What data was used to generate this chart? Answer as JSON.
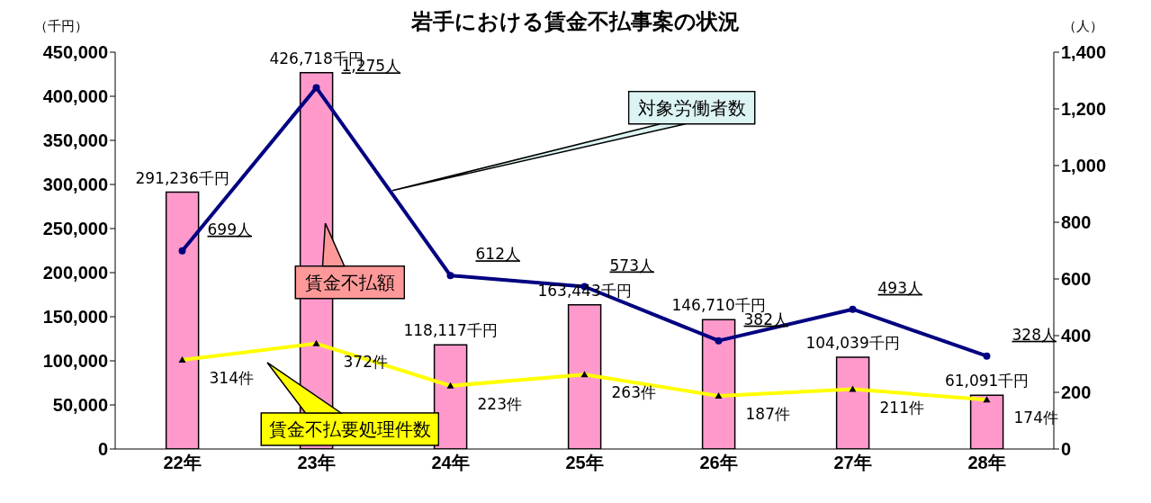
{
  "chart_data": {
    "type": "bar",
    "title": "岩手における賃金不払事案の状況",
    "ylabel": "（千円）",
    "y2label": "（人）",
    "categories": [
      "22年",
      "23年",
      "24年",
      "25年",
      "26年",
      "27年",
      "28年"
    ],
    "series": [
      {
        "name": "賃金不払額",
        "color": "#ff99cc",
        "values": [
          291236,
          426718,
          118117,
          163443,
          146710,
          104039,
          61091
        ],
        "value_labels": [
          "291,236千円",
          "426,718千円",
          "118,117千円",
          "163,443千円",
          "146,710千円",
          "104,039千円",
          "61,091千円"
        ]
      },
      {
        "name": "対象労働者数",
        "type": "line",
        "axis": "y2",
        "color": "#000080",
        "marker": "circle",
        "values": [
          699,
          1275,
          612,
          573,
          382,
          493,
          328
        ],
        "value_labels": [
          "699人",
          "1,275人",
          "612人",
          "573人",
          "382人",
          "493人",
          "328人"
        ]
      },
      {
        "name": "賃金不払要処理件数",
        "type": "line",
        "axis": "y2",
        "color": "#ffff00",
        "marker": "triangle",
        "values": [
          314,
          372,
          223,
          263,
          187,
          211,
          174
        ],
        "value_labels": [
          "314件",
          "372件",
          "223件",
          "263件",
          "187件",
          "211件",
          "174件"
        ]
      }
    ],
    "ylim": [
      0,
      450000
    ],
    "yticks": [
      0,
      {
        "value": 50000,
        "label": "50,000"
      },
      {
        "value": 100000,
        "label": "100,000"
      },
      {
        "value": 150000,
        "label": "150,000"
      },
      {
        "value": 200000,
        "label": "200,000"
      },
      {
        "value": 250000,
        "label": "250,000"
      },
      {
        "value": 300000,
        "label": "300,000"
      },
      {
        "value": 350000,
        "label": "350,000"
      },
      {
        "value": 400000,
        "label": "400,000"
      },
      {
        "value": 450000,
        "label": "450,000"
      }
    ],
    "y2lim": [
      0,
      1400
    ],
    "y2ticks": [
      0,
      200,
      400,
      600,
      800,
      {
        "value": 1000,
        "label": "1,000"
      },
      {
        "value": 1200,
        "label": "1,200"
      },
      {
        "value": 1400,
        "label": "1,400"
      }
    ],
    "grid": false,
    "legend": false
  }
}
